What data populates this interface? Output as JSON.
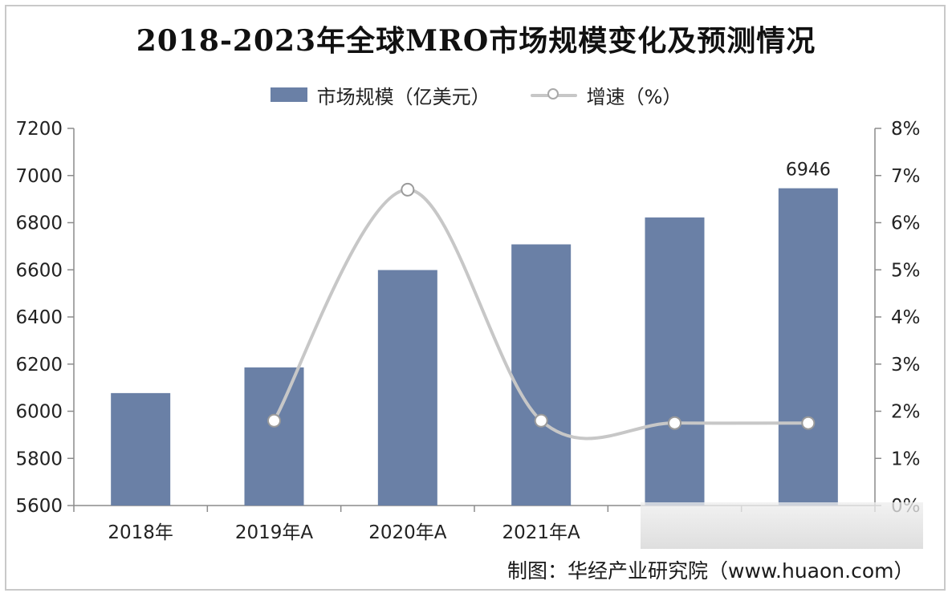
{
  "chart_data": {
    "type": "bar",
    "title": "2018-2023年全球MRO市场规模变化及预测情况",
    "categories": [
      "2018年",
      "2019年A",
      "2020年A",
      "2021年A",
      "",
      ""
    ],
    "series": [
      {
        "name": "市场规模（亿美元）",
        "type": "bar",
        "axis": "left",
        "color": "#6a80a6",
        "values": [
          6077,
          6186,
          6599,
          6708,
          6822,
          6946
        ]
      },
      {
        "name": "增速（%）",
        "type": "line",
        "axis": "right",
        "color": "#c7c7c7",
        "values": [
          null,
          1.8,
          6.7,
          1.8,
          1.75,
          1.75
        ]
      }
    ],
    "data_labels": [
      {
        "series": 0,
        "index": 5,
        "text": "6946"
      }
    ],
    "y_left": {
      "ylim": [
        5600,
        7200
      ],
      "ticks": [
        "5600",
        "5800",
        "6000",
        "6200",
        "6400",
        "6600",
        "6800",
        "7000",
        "7200"
      ]
    },
    "y_right": {
      "ylim": [
        0,
        8
      ],
      "ticks": [
        "0%",
        "1%",
        "2%",
        "3%",
        "4%",
        "5%",
        "6%",
        "7%",
        "8%"
      ]
    },
    "grid": false,
    "legend_position": "top"
  },
  "source": "制图：华经产业研究院（www.huaon.com）"
}
